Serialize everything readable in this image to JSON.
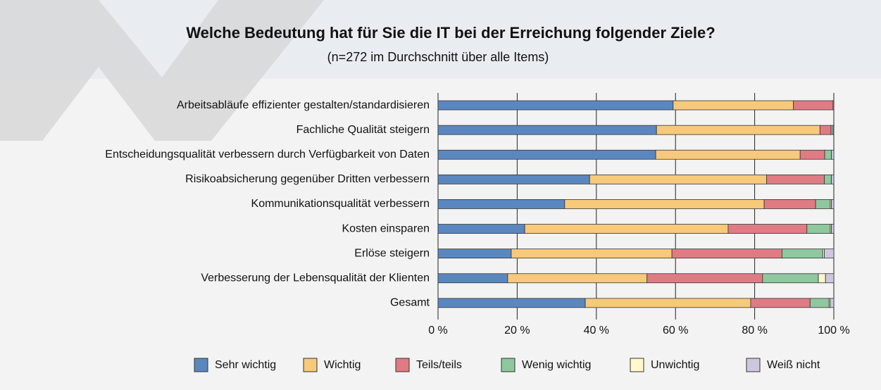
{
  "chart_data": {
    "type": "stacked_barh",
    "title": "Welche Bedeutung hat für Sie die IT bei der Erreichung folgender Ziele?",
    "subtitle": "(n=272 im Durchschnitt über alle Items)",
    "categories": [
      "Arbeitsabläufe effizienter gestalten/standardisieren",
      "Fachliche Qualität steigern",
      "Entscheidungsqualität verbessern durch Verfügbarkeit von Daten",
      "Risikoabsicherung gegenüber Dritten verbessern",
      "Kommunikationsqualität verbessern",
      "Kosten einsparen",
      "Erlöse steigern",
      "Verbesserung der Lebensqualität der Klienten",
      "Gesamt"
    ],
    "series": [
      {
        "name": "Sehr wichtig",
        "color": "#5b87c0",
        "values": [
          59.4,
          55.2,
          55,
          38.3,
          32,
          21.9,
          18.5,
          17.6,
          37.2
        ]
      },
      {
        "name": "Wichtig",
        "color": "#f7c97a",
        "values": [
          30.4,
          41.3,
          36.5,
          44.7,
          50.4,
          51.4,
          40.6,
          35.2,
          41.8
        ]
      },
      {
        "name": "Teils/teils",
        "color": "#e07b84",
        "values": [
          10,
          2.8,
          6.2,
          14.6,
          13,
          19.9,
          27.8,
          29.2,
          15
        ]
      },
      {
        "name": "Wenig wichtig",
        "color": "#8fc79e",
        "values": [
          0,
          0.5,
          1.7,
          1.8,
          3.7,
          5.9,
          10.3,
          14.1,
          4.8
        ]
      },
      {
        "name": "Unwichtig",
        "color": "#fff8cc",
        "values": [
          0,
          0,
          0,
          0,
          0.3,
          0.3,
          0.4,
          1.8,
          0.3
        ]
      },
      {
        "name": "Weiß nicht",
        "color": "#cfc7e0",
        "values": [
          0.2,
          0.2,
          0.6,
          0.6,
          0.6,
          0.6,
          2.4,
          2.1,
          0.9
        ]
      }
    ],
    "xlim": [
      0,
      100
    ],
    "xticks": [
      {
        "value": 0,
        "label": "0 %"
      },
      {
        "value": 20,
        "label": "20 %"
      },
      {
        "value": 40,
        "label": "40 %"
      },
      {
        "value": 60,
        "label": "60 %"
      },
      {
        "value": 80,
        "label": "80 %"
      },
      {
        "value": 100,
        "label": "100 %"
      }
    ],
    "grid": true
  }
}
